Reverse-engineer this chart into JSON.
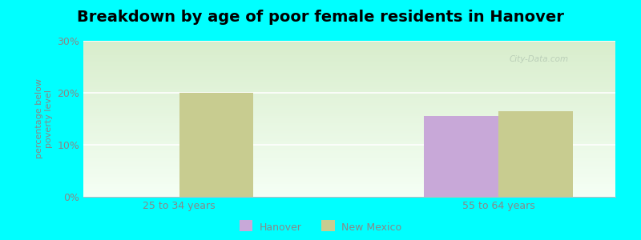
{
  "title": "Breakdown by age of poor female residents in Hanover",
  "ylabel": "percentage below\npoverty level",
  "categories": [
    "25 to 34 years",
    "55 to 64 years"
  ],
  "series": {
    "Hanover": [
      null,
      15.5
    ],
    "New Mexico": [
      20.0,
      16.5
    ]
  },
  "hanover_color": "#c8a8d8",
  "new_mexico_color": "#c8cc90",
  "ylim": [
    0,
    30
  ],
  "yticks": [
    0,
    10,
    20,
    30
  ],
  "ytick_labels": [
    "0%",
    "10%",
    "20%",
    "30%"
  ],
  "background_color": "#00ffff",
  "grad_top_left": "#d8edcc",
  "grad_bottom_right": "#f0f8f0",
  "bar_width": 0.35,
  "title_fontsize": 14,
  "axis_label_color": "#888888",
  "tick_label_color": "#888888",
  "watermark": "City-Data.com",
  "x_positions": [
    0.5,
    2.0
  ],
  "xlim": [
    0.05,
    2.55
  ]
}
